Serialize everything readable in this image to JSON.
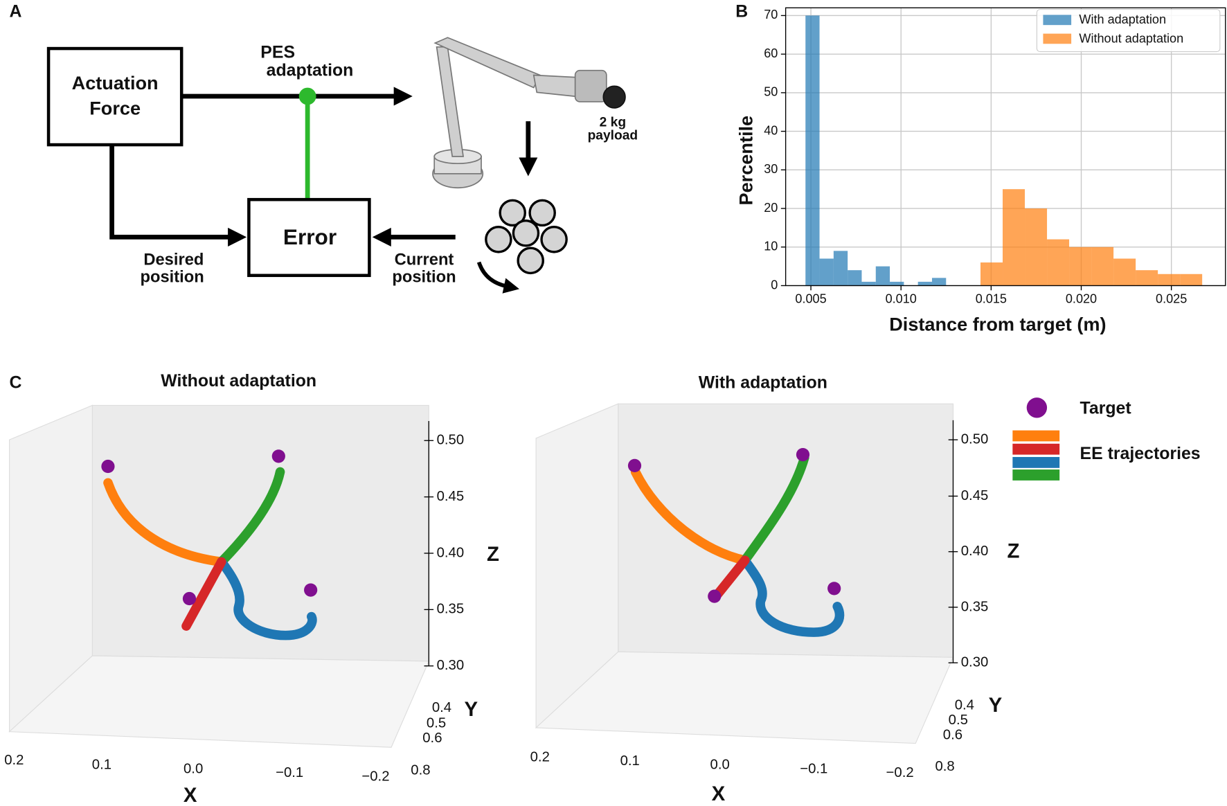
{
  "diagram": {
    "panel_label": "A",
    "blocks": [
      {
        "lines": [
          "Actuation",
          "Force"
        ]
      },
      {
        "lines": [
          "Error"
        ]
      }
    ],
    "labels": {
      "pes": [
        "PES",
        "adaptation"
      ],
      "desired": [
        "Desired",
        "position"
      ],
      "current": [
        "Current",
        "position"
      ],
      "payload": [
        "2 kg",
        "payload"
      ]
    }
  },
  "chart_data": {
    "type": "histogram",
    "panel_label": "B",
    "x_label": "Distance from target (m)",
    "y_label": "Percentile",
    "xlim": [
      0.0036,
      0.028
    ],
    "ylim": [
      0,
      72
    ],
    "xticks": [
      0.005,
      {
        "value": 0.01,
        "label": "0.010"
      },
      0.015,
      {
        "value": 0.02,
        "label": "0.020"
      },
      0.025
    ],
    "yticks": [
      0,
      10,
      20,
      30,
      40,
      50,
      60,
      70
    ],
    "grid": true,
    "legend": "upper right",
    "series": [
      {
        "name": "With adaptation",
        "color": "#1f77b4",
        "bins": [
          0.0047,
          0.00548,
          0.00626,
          0.00704,
          0.00782,
          0.0086,
          0.00938,
          0.01016,
          0.01094,
          0.01172,
          0.0125
        ],
        "values": [
          70,
          7,
          9,
          4,
          1,
          5,
          1,
          0,
          1,
          2
        ]
      },
      {
        "name": "Without adaptation",
        "color": "#ff7f0e",
        "bins": [
          0.01441,
          0.01564,
          0.01687,
          0.0181,
          0.01933,
          0.02056,
          0.02179,
          0.02302,
          0.02425,
          0.02548,
          0.02671
        ],
        "values": [
          6,
          25,
          20,
          12,
          10,
          10,
          7,
          4,
          3,
          3
        ]
      }
    ]
  },
  "panel_c": {
    "panel_label": "C",
    "plots": [
      {
        "title": "Without adaptation"
      },
      {
        "title": "With adaptation"
      }
    ],
    "z_ticks": [
      "0.50",
      "0.45",
      "0.40",
      "0.35",
      "0.30"
    ],
    "y_ticks": [
      "0.4",
      "0.5",
      "0.6",
      "0.8"
    ],
    "x_ticks": [
      "0.2",
      "0.1",
      "0.0",
      "−0.1",
      "−0.2"
    ],
    "axis_names": {
      "x": "X",
      "y": "Y",
      "z": "Z"
    },
    "legend": {
      "target": "Target",
      "trajectories": "EE trajectories"
    }
  }
}
